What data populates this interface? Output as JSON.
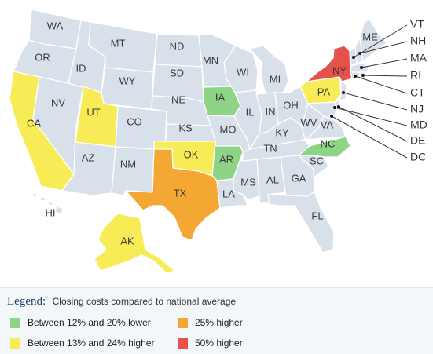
{
  "colors": {
    "default": "#d8e1ea",
    "lower_12_20": "#8ed487",
    "higher_13_24": "#f7ec55",
    "higher_25": "#f5a733",
    "higher_50": "#e6504d"
  },
  "legend": {
    "title": "Legend:",
    "description": "Closing costs compared to national average",
    "items": [
      {
        "label": "Between 12% and 20% lower",
        "category": "lower_12_20"
      },
      {
        "label": "Between 13% and 24% higher",
        "category": "higher_13_24"
      },
      {
        "label": "25% higher",
        "category": "higher_25"
      },
      {
        "label": "50% higher",
        "category": "higher_50"
      }
    ]
  },
  "states": {
    "WA": "default",
    "OR": "default",
    "CA": "higher_13_24",
    "NV": "default",
    "ID": "default",
    "MT": "default",
    "WY": "default",
    "UT": "higher_13_24",
    "AZ": "default",
    "CO": "default",
    "NM": "default",
    "ND": "default",
    "SD": "default",
    "NE": "default",
    "KS": "default",
    "OK": "higher_13_24",
    "TX": "higher_25",
    "MN": "default",
    "IA": "lower_12_20",
    "MO": "default",
    "AR": "lower_12_20",
    "LA": "default",
    "WI": "default",
    "IL": "default",
    "MS": "default",
    "MI": "default",
    "IN": "default",
    "KY": "default",
    "TN": "default",
    "AL": "default",
    "GA": "default",
    "FL": "default",
    "OH": "default",
    "WV": "default",
    "VA": "default",
    "NC": "lower_12_20",
    "SC": "default",
    "PA": "higher_13_24",
    "NY": "higher_50",
    "ME": "default",
    "AK": "higher_13_24",
    "HI": "default",
    "VT": "default",
    "NH": "default",
    "MA": "default",
    "RI": "default",
    "CT": "default",
    "NJ": "default",
    "MD": "default",
    "DE": "default",
    "DC": "default"
  },
  "callout_states": [
    "VT",
    "NH",
    "MA",
    "RI",
    "CT",
    "NJ",
    "MD",
    "DE",
    "DC"
  ]
}
